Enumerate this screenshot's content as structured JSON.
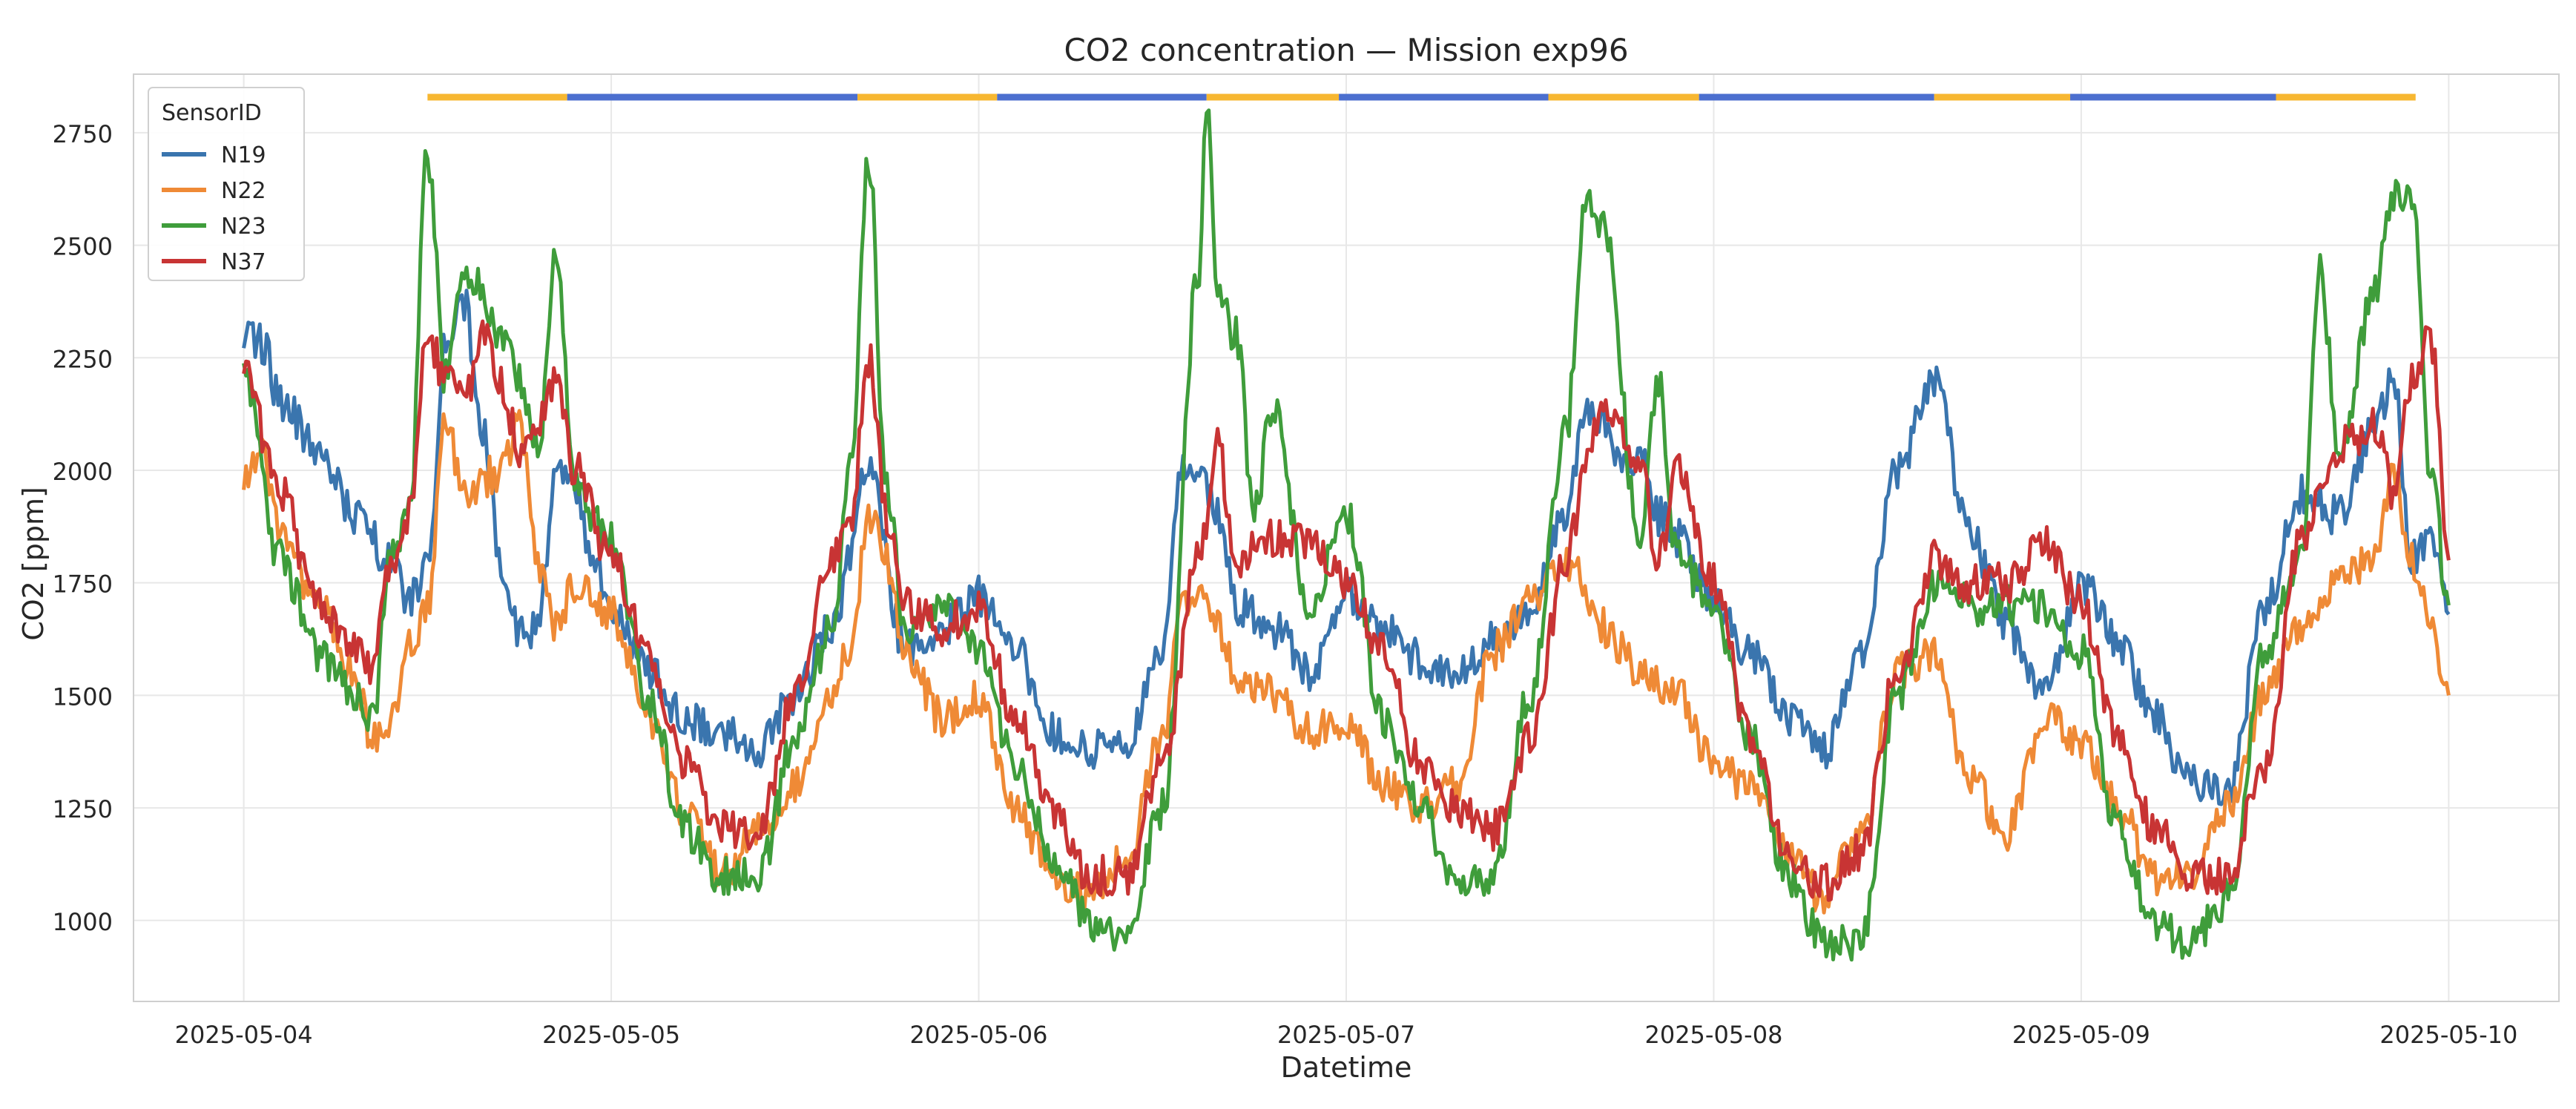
{
  "chart_data": {
    "type": "line",
    "title": "CO2 concentration — Mission exp96",
    "xlabel": "Datetime",
    "ylabel": "CO2 [ppm]",
    "xlim": [
      -0.3,
      6.3
    ],
    "ylim": [
      820,
      2880
    ],
    "x_ticks": [
      0,
      1,
      2,
      3,
      4,
      5,
      6
    ],
    "x_tick_labels": [
      "2025-05-04",
      "2025-05-05",
      "2025-05-06",
      "2025-05-07",
      "2025-05-08",
      "2025-05-09",
      "2025-05-10"
    ],
    "y_ticks": [
      1000,
      1250,
      1500,
      1750,
      2000,
      2250,
      2500,
      2750
    ],
    "y_tick_labels": [
      "1000",
      "1250",
      "1500",
      "1750",
      "2000",
      "2250",
      "2500",
      "2750"
    ],
    "grid": true,
    "legend": {
      "title": "SensorID",
      "position": "top-left"
    },
    "x_unit": "days since 2025-05-04",
    "series": [
      {
        "name": "N19",
        "color": "#3a75ae",
        "x": [
          0,
          0.05,
          0.1,
          0.2,
          0.3,
          0.4,
          0.45,
          0.5,
          0.55,
          0.6,
          0.65,
          0.7,
          0.75,
          0.8,
          0.85,
          0.9,
          0.95,
          1.0,
          1.1,
          1.2,
          1.3,
          1.4,
          1.5,
          1.6,
          1.7,
          1.8,
          1.9,
          2.0,
          2.1,
          2.2,
          2.3,
          2.4,
          2.5,
          2.55,
          2.6,
          2.65,
          2.7,
          2.8,
          2.9,
          3.0,
          3.1,
          3.2,
          3.3,
          3.4,
          3.5,
          3.6,
          3.65,
          3.7,
          3.75,
          3.8,
          3.85,
          3.9,
          4.0,
          4.1,
          4.2,
          4.3,
          4.4,
          4.5,
          4.6,
          4.7,
          4.8,
          4.9,
          5.0,
          5.1,
          5.2,
          5.3,
          5.4,
          5.5,
          5.6,
          5.7,
          5.8,
          5.85,
          5.9,
          5.95,
          6.0
        ],
        "y": [
          2300,
          2280,
          2150,
          2050,
          1900,
          1800,
          1700,
          1800,
          2300,
          2370,
          2100,
          1800,
          1650,
          1650,
          2000,
          1950,
          1800,
          1700,
          1550,
          1450,
          1420,
          1380,
          1500,
          1650,
          2000,
          1600,
          1650,
          1720,
          1600,
          1420,
          1380,
          1380,
          1600,
          2000,
          1980,
          1900,
          1700,
          1650,
          1550,
          1720,
          1650,
          1580,
          1550,
          1620,
          1700,
          1900,
          2150,
          2100,
          2000,
          2050,
          1900,
          1850,
          1700,
          1600,
          1450,
          1380,
          1580,
          2000,
          2200,
          1850,
          1650,
          1500,
          1750,
          1620,
          1450,
          1300,
          1280,
          1700,
          1950,
          1900,
          2100,
          2200,
          1800,
          1850,
          1680
        ]
      },
      {
        "name": "N22",
        "color": "#ef8a36",
        "x": [
          0,
          0.05,
          0.1,
          0.2,
          0.3,
          0.35,
          0.4,
          0.45,
          0.5,
          0.55,
          0.6,
          0.7,
          0.75,
          0.8,
          0.85,
          0.9,
          1.0,
          1.1,
          1.2,
          1.3,
          1.4,
          1.5,
          1.6,
          1.65,
          1.7,
          1.75,
          1.8,
          1.9,
          2.0,
          2.1,
          2.2,
          2.3,
          2.4,
          2.5,
          2.55,
          2.6,
          2.65,
          2.7,
          2.8,
          2.9,
          3.0,
          3.1,
          3.2,
          3.3,
          3.4,
          3.5,
          3.6,
          3.7,
          3.8,
          3.9,
          4.0,
          4.1,
          4.2,
          4.3,
          4.4,
          4.5,
          4.6,
          4.7,
          4.8,
          4.9,
          5.0,
          5.1,
          5.2,
          5.3,
          5.4,
          5.5,
          5.6,
          5.7,
          5.8,
          5.85,
          5.9,
          5.95,
          6.0
        ],
        "y": [
          1980,
          2050,
          1850,
          1700,
          1550,
          1400,
          1450,
          1600,
          1700,
          2100,
          1950,
          2000,
          2100,
          1800,
          1650,
          1750,
          1680,
          1450,
          1250,
          1100,
          1200,
          1300,
          1500,
          1600,
          1900,
          1800,
          1600,
          1450,
          1500,
          1250,
          1100,
          1050,
          1150,
          1400,
          1700,
          1750,
          1650,
          1550,
          1500,
          1420,
          1450,
          1300,
          1250,
          1300,
          1600,
          1700,
          1800,
          1650,
          1550,
          1500,
          1350,
          1300,
          1150,
          1050,
          1200,
          1550,
          1600,
          1300,
          1200,
          1450,
          1400,
          1250,
          1100,
          1100,
          1250,
          1500,
          1650,
          1750,
          1800,
          2000,
          1800,
          1650,
          1500
        ]
      },
      {
        "name": "N23",
        "color": "#3f9d3b",
        "x": [
          0,
          0.1,
          0.2,
          0.3,
          0.35,
          0.4,
          0.45,
          0.5,
          0.55,
          0.6,
          0.7,
          0.75,
          0.8,
          0.85,
          0.9,
          1.0,
          1.1,
          1.2,
          1.3,
          1.4,
          1.5,
          1.6,
          1.65,
          1.7,
          1.75,
          1.8,
          1.9,
          2.0,
          2.1,
          2.2,
          2.3,
          2.4,
          2.5,
          2.6,
          2.62,
          2.65,
          2.7,
          2.75,
          2.8,
          2.9,
          3.0,
          3.1,
          3.2,
          3.3,
          3.4,
          3.5,
          3.6,
          3.65,
          3.7,
          3.8,
          3.85,
          3.9,
          4.0,
          4.1,
          4.2,
          4.3,
          4.4,
          4.5,
          4.6,
          4.7,
          4.8,
          4.9,
          5.0,
          5.1,
          5.2,
          5.3,
          5.4,
          5.5,
          5.6,
          5.65,
          5.7,
          5.8,
          5.85,
          5.9,
          5.95,
          6.0
        ],
        "y": [
          2200,
          1800,
          1600,
          1500,
          1450,
          1800,
          1900,
          2700,
          2200,
          2450,
          2300,
          2200,
          2050,
          2500,
          1950,
          1850,
          1500,
          1200,
          1100,
          1100,
          1400,
          1650,
          2000,
          2700,
          1950,
          1650,
          1700,
          1600,
          1350,
          1150,
          1000,
          950,
          1250,
          2450,
          2800,
          2400,
          2300,
          1900,
          2150,
          1700,
          1900,
          1450,
          1250,
          1100,
          1100,
          1500,
          2100,
          2600,
          2550,
          1850,
          2200,
          1800,
          1700,
          1400,
          1100,
          950,
          950,
          1500,
          1750,
          1700,
          1700,
          1700,
          1600,
          1200,
          1000,
          950,
          1050,
          1600,
          1800,
          2450,
          2050,
          2400,
          2600,
          2600,
          2000,
          1700
        ]
      },
      {
        "name": "N37",
        "color": "#c83434",
        "x": [
          0,
          0.1,
          0.2,
          0.3,
          0.35,
          0.4,
          0.45,
          0.5,
          0.55,
          0.6,
          0.65,
          0.7,
          0.75,
          0.8,
          0.85,
          0.9,
          1.0,
          1.1,
          1.2,
          1.3,
          1.4,
          1.5,
          1.6,
          1.65,
          1.7,
          1.75,
          1.8,
          1.9,
          2.0,
          2.1,
          2.2,
          2.3,
          2.4,
          2.5,
          2.6,
          2.65,
          2.7,
          2.8,
          2.9,
          3.0,
          3.1,
          3.2,
          3.3,
          3.4,
          3.5,
          3.6,
          3.65,
          3.7,
          3.8,
          3.85,
          3.9,
          4.0,
          4.1,
          4.2,
          4.3,
          4.4,
          4.5,
          4.6,
          4.7,
          4.8,
          4.9,
          5.0,
          5.1,
          5.2,
          5.3,
          5.4,
          5.5,
          5.6,
          5.7,
          5.8,
          5.85,
          5.9,
          5.95,
          6.0
        ],
        "y": [
          2220,
          1950,
          1700,
          1600,
          1550,
          1800,
          1900,
          2300,
          2200,
          2150,
          2300,
          2200,
          2050,
          2100,
          2200,
          2000,
          1800,
          1600,
          1350,
          1200,
          1200,
          1500,
          1800,
          1850,
          2250,
          1900,
          1700,
          1650,
          1700,
          1450,
          1250,
          1100,
          1100,
          1350,
          1800,
          2050,
          1800,
          1850,
          1850,
          1750,
          1600,
          1350,
          1250,
          1200,
          1400,
          1800,
          2000,
          2150,
          2000,
          1800,
          2000,
          1750,
          1400,
          1150,
          1080,
          1150,
          1550,
          1800,
          1750,
          1750,
          1850,
          1700,
          1400,
          1200,
          1100,
          1100,
          1350,
          1850,
          2050,
          2100,
          1950,
          2200,
          2300,
          1800
        ]
      }
    ],
    "status_bar": {
      "segments": [
        {
          "start": 0.5,
          "end": 0.88,
          "color": "#f7b731"
        },
        {
          "start": 0.88,
          "end": 1.67,
          "color": "#4c6fcf"
        },
        {
          "start": 1.67,
          "end": 2.05,
          "color": "#f7b731"
        },
        {
          "start": 2.05,
          "end": 2.62,
          "color": "#4c6fcf"
        },
        {
          "start": 2.62,
          "end": 2.98,
          "color": "#f7b731"
        },
        {
          "start": 2.98,
          "end": 3.55,
          "color": "#4c6fcf"
        },
        {
          "start": 3.55,
          "end": 3.96,
          "color": "#f7b731"
        },
        {
          "start": 3.96,
          "end": 4.6,
          "color": "#4c6fcf"
        },
        {
          "start": 4.6,
          "end": 4.97,
          "color": "#f7b731"
        },
        {
          "start": 4.97,
          "end": 5.53,
          "color": "#4c6fcf"
        },
        {
          "start": 5.53,
          "end": 5.91,
          "color": "#f7b731"
        }
      ]
    }
  }
}
